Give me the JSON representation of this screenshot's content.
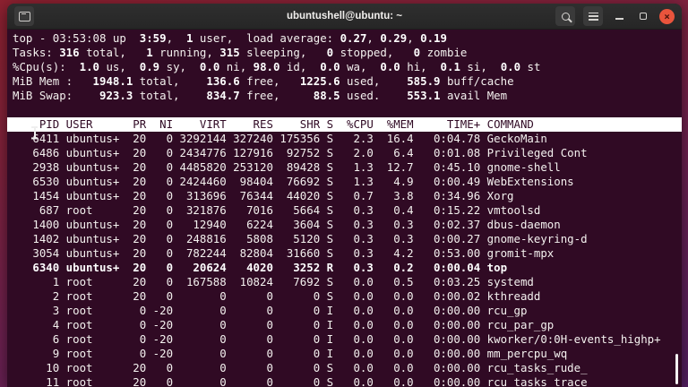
{
  "window": {
    "title": "ubuntushell@ubuntu: ~",
    "titlebar_icons": {
      "new_tab": "terminal-tab-icon",
      "search": "search-icon",
      "menu": "hamburger-menu-icon",
      "minimize": "minimize-icon",
      "maximize": "maximize-icon",
      "close": "close-icon"
    },
    "close_glyph": "×"
  },
  "colors": {
    "terminal_background": "#300a24",
    "terminal_foreground": "#f4f1ef",
    "table_header_background": "#ffffff",
    "table_header_foreground": "#300a24",
    "close_button": "#e9543c",
    "titlebar": "#2b2b2b",
    "wallpaper_top": "#8e2130",
    "wallpaper_bottom": "#541f62"
  },
  "terminal": {
    "summary_lines": [
      [
        {
          "t": "top - 03:53:08 up  ",
          "b": false
        },
        {
          "t": "3:59",
          "b": true
        },
        {
          "t": ",  ",
          "b": false
        },
        {
          "t": "1",
          "b": true
        },
        {
          "t": " user,  load average: ",
          "b": false
        },
        {
          "t": "0.27",
          "b": true
        },
        {
          "t": ", ",
          "b": false
        },
        {
          "t": "0.29",
          "b": true
        },
        {
          "t": ", ",
          "b": false
        },
        {
          "t": "0.19",
          "b": true
        }
      ],
      [
        {
          "t": "Tasks: ",
          "b": false
        },
        {
          "t": "316",
          "b": true
        },
        {
          "t": " total,   ",
          "b": false
        },
        {
          "t": "1",
          "b": true
        },
        {
          "t": " running, ",
          "b": false
        },
        {
          "t": "315",
          "b": true
        },
        {
          "t": " sleeping,   ",
          "b": false
        },
        {
          "t": "0",
          "b": true
        },
        {
          "t": " stopped,   ",
          "b": false
        },
        {
          "t": "0",
          "b": true
        },
        {
          "t": " zombie",
          "b": false
        }
      ],
      [
        {
          "t": "%Cpu(s):  ",
          "b": false
        },
        {
          "t": "1.0",
          "b": true
        },
        {
          "t": " us,  ",
          "b": false
        },
        {
          "t": "0.9",
          "b": true
        },
        {
          "t": " sy,  ",
          "b": false
        },
        {
          "t": "0.0",
          "b": true
        },
        {
          "t": " ni, ",
          "b": false
        },
        {
          "t": "98.0",
          "b": true
        },
        {
          "t": " id,  ",
          "b": false
        },
        {
          "t": "0.0",
          "b": true
        },
        {
          "t": " wa,  ",
          "b": false
        },
        {
          "t": "0.0",
          "b": true
        },
        {
          "t": " hi,  ",
          "b": false
        },
        {
          "t": "0.1",
          "b": true
        },
        {
          "t": " si,  ",
          "b": false
        },
        {
          "t": "0.0",
          "b": true
        },
        {
          "t": " st",
          "b": false
        }
      ],
      [
        {
          "t": "MiB Mem :   ",
          "b": false
        },
        {
          "t": "1948.1",
          "b": true
        },
        {
          "t": " total,    ",
          "b": false
        },
        {
          "t": "136.6",
          "b": true
        },
        {
          "t": " free,   ",
          "b": false
        },
        {
          "t": "1225.6",
          "b": true
        },
        {
          "t": " used,    ",
          "b": false
        },
        {
          "t": "585.9",
          "b": true
        },
        {
          "t": " buff/cache",
          "b": false
        }
      ],
      [
        {
          "t": "MiB Swap:    ",
          "b": false
        },
        {
          "t": "923.3",
          "b": true
        },
        {
          "t": " total,    ",
          "b": false
        },
        {
          "t": "834.7",
          "b": true
        },
        {
          "t": " free,     ",
          "b": false
        },
        {
          "t": "88.5",
          "b": true
        },
        {
          "t": " used.    ",
          "b": false
        },
        {
          "t": "553.1",
          "b": true
        },
        {
          "t": " avail Mem",
          "b": false
        }
      ]
    ],
    "table": {
      "columns": [
        {
          "label": "PID",
          "width": 7,
          "align": "right"
        },
        {
          "label": "USER",
          "width": 8,
          "align": "left"
        },
        {
          "label": "PR",
          "width": 3,
          "align": "right"
        },
        {
          "label": "NI",
          "width": 3,
          "align": "right"
        },
        {
          "label": "VIRT",
          "width": 7,
          "align": "right"
        },
        {
          "label": "RES",
          "width": 6,
          "align": "right"
        },
        {
          "label": "SHR",
          "width": 6,
          "align": "right"
        },
        {
          "label": "S",
          "width": 1,
          "align": "left"
        },
        {
          "label": "%CPU",
          "width": 5,
          "align": "right"
        },
        {
          "label": "%MEM",
          "width": 5,
          "align": "right"
        },
        {
          "label": "TIME+",
          "width": 9,
          "align": "right"
        },
        {
          "label": "COMMAND",
          "width": 0,
          "align": "left"
        }
      ],
      "rows": [
        {
          "cells": [
            "6411",
            "ubuntus+",
            "20",
            "0",
            "3292144",
            "327240",
            "175356",
            "S",
            "2.3",
            "16.4",
            "0:04.78",
            "GeckoMain"
          ],
          "bold": false
        },
        {
          "cells": [
            "6486",
            "ubuntus+",
            "20",
            "0",
            "2434776",
            "127916",
            "92752",
            "S",
            "2.0",
            "6.4",
            "0:01.08",
            "Privileged Cont"
          ],
          "bold": false
        },
        {
          "cells": [
            "2938",
            "ubuntus+",
            "20",
            "0",
            "4485820",
            "253120",
            "89428",
            "S",
            "1.3",
            "12.7",
            "0:45.10",
            "gnome-shell"
          ],
          "bold": false
        },
        {
          "cells": [
            "6530",
            "ubuntus+",
            "20",
            "0",
            "2424460",
            "98404",
            "76692",
            "S",
            "1.3",
            "4.9",
            "0:00.49",
            "WebExtensions"
          ],
          "bold": false
        },
        {
          "cells": [
            "1454",
            "ubuntus+",
            "20",
            "0",
            "313696",
            "76344",
            "44020",
            "S",
            "0.7",
            "3.8",
            "0:34.96",
            "Xorg"
          ],
          "bold": false
        },
        {
          "cells": [
            "687",
            "root",
            "20",
            "0",
            "321876",
            "7016",
            "5664",
            "S",
            "0.3",
            "0.4",
            "0:15.22",
            "vmtoolsd"
          ],
          "bold": false
        },
        {
          "cells": [
            "1400",
            "ubuntus+",
            "20",
            "0",
            "12940",
            "6224",
            "3604",
            "S",
            "0.3",
            "0.3",
            "0:02.37",
            "dbus-daemon"
          ],
          "bold": false
        },
        {
          "cells": [
            "1402",
            "ubuntus+",
            "20",
            "0",
            "248816",
            "5808",
            "5120",
            "S",
            "0.3",
            "0.3",
            "0:00.27",
            "gnome-keyring-d"
          ],
          "bold": false
        },
        {
          "cells": [
            "3054",
            "ubuntus+",
            "20",
            "0",
            "782244",
            "82804",
            "31660",
            "S",
            "0.3",
            "4.2",
            "0:53.00",
            "gromit-mpx"
          ],
          "bold": false
        },
        {
          "cells": [
            "6340",
            "ubuntus+",
            "20",
            "0",
            "20624",
            "4020",
            "3252",
            "R",
            "0.3",
            "0.2",
            "0:00.04",
            "top"
          ],
          "bold": true
        },
        {
          "cells": [
            "1",
            "root",
            "20",
            "0",
            "167588",
            "10824",
            "7692",
            "S",
            "0.0",
            "0.5",
            "0:03.25",
            "systemd"
          ],
          "bold": false
        },
        {
          "cells": [
            "2",
            "root",
            "20",
            "0",
            "0",
            "0",
            "0",
            "S",
            "0.0",
            "0.0",
            "0:00.02",
            "kthreadd"
          ],
          "bold": false
        },
        {
          "cells": [
            "3",
            "root",
            "0",
            "-20",
            "0",
            "0",
            "0",
            "I",
            "0.0",
            "0.0",
            "0:00.00",
            "rcu_gp"
          ],
          "bold": false
        },
        {
          "cells": [
            "4",
            "root",
            "0",
            "-20",
            "0",
            "0",
            "0",
            "I",
            "0.0",
            "0.0",
            "0:00.00",
            "rcu_par_gp"
          ],
          "bold": false
        },
        {
          "cells": [
            "6",
            "root",
            "0",
            "-20",
            "0",
            "0",
            "0",
            "I",
            "0.0",
            "0.0",
            "0:00.00",
            "kworker/0:0H-events_highp+"
          ],
          "bold": false
        },
        {
          "cells": [
            "9",
            "root",
            "0",
            "-20",
            "0",
            "0",
            "0",
            "I",
            "0.0",
            "0.0",
            "0:00.00",
            "mm_percpu_wq"
          ],
          "bold": false
        },
        {
          "cells": [
            "10",
            "root",
            "20",
            "0",
            "0",
            "0",
            "0",
            "S",
            "0.0",
            "0.0",
            "0:00.00",
            "rcu_tasks_rude_"
          ],
          "bold": false
        },
        {
          "cells": [
            "11",
            "root",
            "20",
            "0",
            "0",
            "0",
            "0",
            "S",
            "0.0",
            "0.0",
            "0:00.00",
            "rcu_tasks_trace"
          ],
          "bold": false
        }
      ]
    }
  }
}
